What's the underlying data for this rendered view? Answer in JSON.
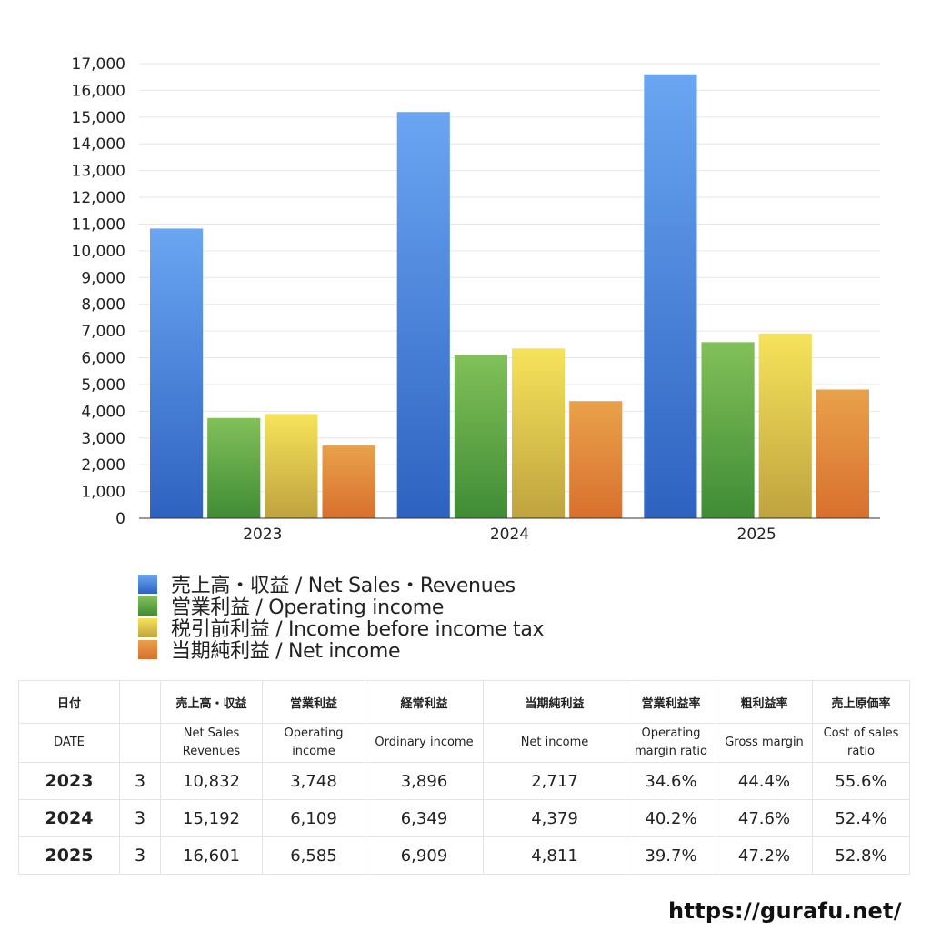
{
  "chart_data": {
    "type": "bar",
    "categories": [
      "2023",
      "2024",
      "2025"
    ],
    "series": [
      {
        "name": "売上高・収益 / Net Sales・Revenues",
        "values": [
          10832,
          15192,
          16601
        ],
        "color_top": "#6aa6f2",
        "color_bottom": "#2e62c0"
      },
      {
        "name": "営業利益 / Operating income",
        "values": [
          3748,
          6109,
          6585
        ],
        "color_top": "#82c059",
        "color_bottom": "#3f8c35"
      },
      {
        "name": "税引前利益 / Income before income tax",
        "values": [
          3896,
          6349,
          6909
        ],
        "color_top": "#f6e35a",
        "color_bottom": "#bfa33f"
      },
      {
        "name": "当期純利益 / Net income",
        "values": [
          2717,
          4379,
          4811
        ],
        "color_top": "#e9a14a",
        "color_bottom": "#d8702e"
      }
    ],
    "ylim": [
      0,
      17000
    ],
    "yticks": [
      "0",
      "1,000",
      "2,000",
      "3,000",
      "4,000",
      "5,000",
      "6,000",
      "7,000",
      "8,000",
      "9,000",
      "10,000",
      "11,000",
      "12,000",
      "13,000",
      "14,000",
      "15,000",
      "16,000",
      "17,000"
    ],
    "grid": true,
    "legend_position": "bottom"
  },
  "table": {
    "headers_jp": [
      "日付",
      "",
      "売上高・収益",
      "営業利益",
      "経常利益",
      "当期純利益",
      "営業利益率",
      "粗利益率",
      "売上原価率"
    ],
    "headers_en": [
      "DATE",
      "",
      "Net Sales\nRevenues",
      "Operating\nincome",
      "Ordinary income",
      "Net income",
      "Operating\nmargin ratio",
      "Gross margin",
      "Cost of sales\nratio"
    ],
    "rows": [
      [
        "2023",
        "3",
        "10,832",
        "3,748",
        "3,896",
        "2,717",
        "34.6%",
        "44.4%",
        "55.6%"
      ],
      [
        "2024",
        "3",
        "15,192",
        "6,109",
        "6,349",
        "4,379",
        "40.2%",
        "47.6%",
        "52.4%"
      ],
      [
        "2025",
        "3",
        "16,601",
        "6,585",
        "6,909",
        "4,811",
        "39.7%",
        "47.2%",
        "52.8%"
      ]
    ]
  },
  "footer": {
    "url": "https://gurafu.net/"
  }
}
